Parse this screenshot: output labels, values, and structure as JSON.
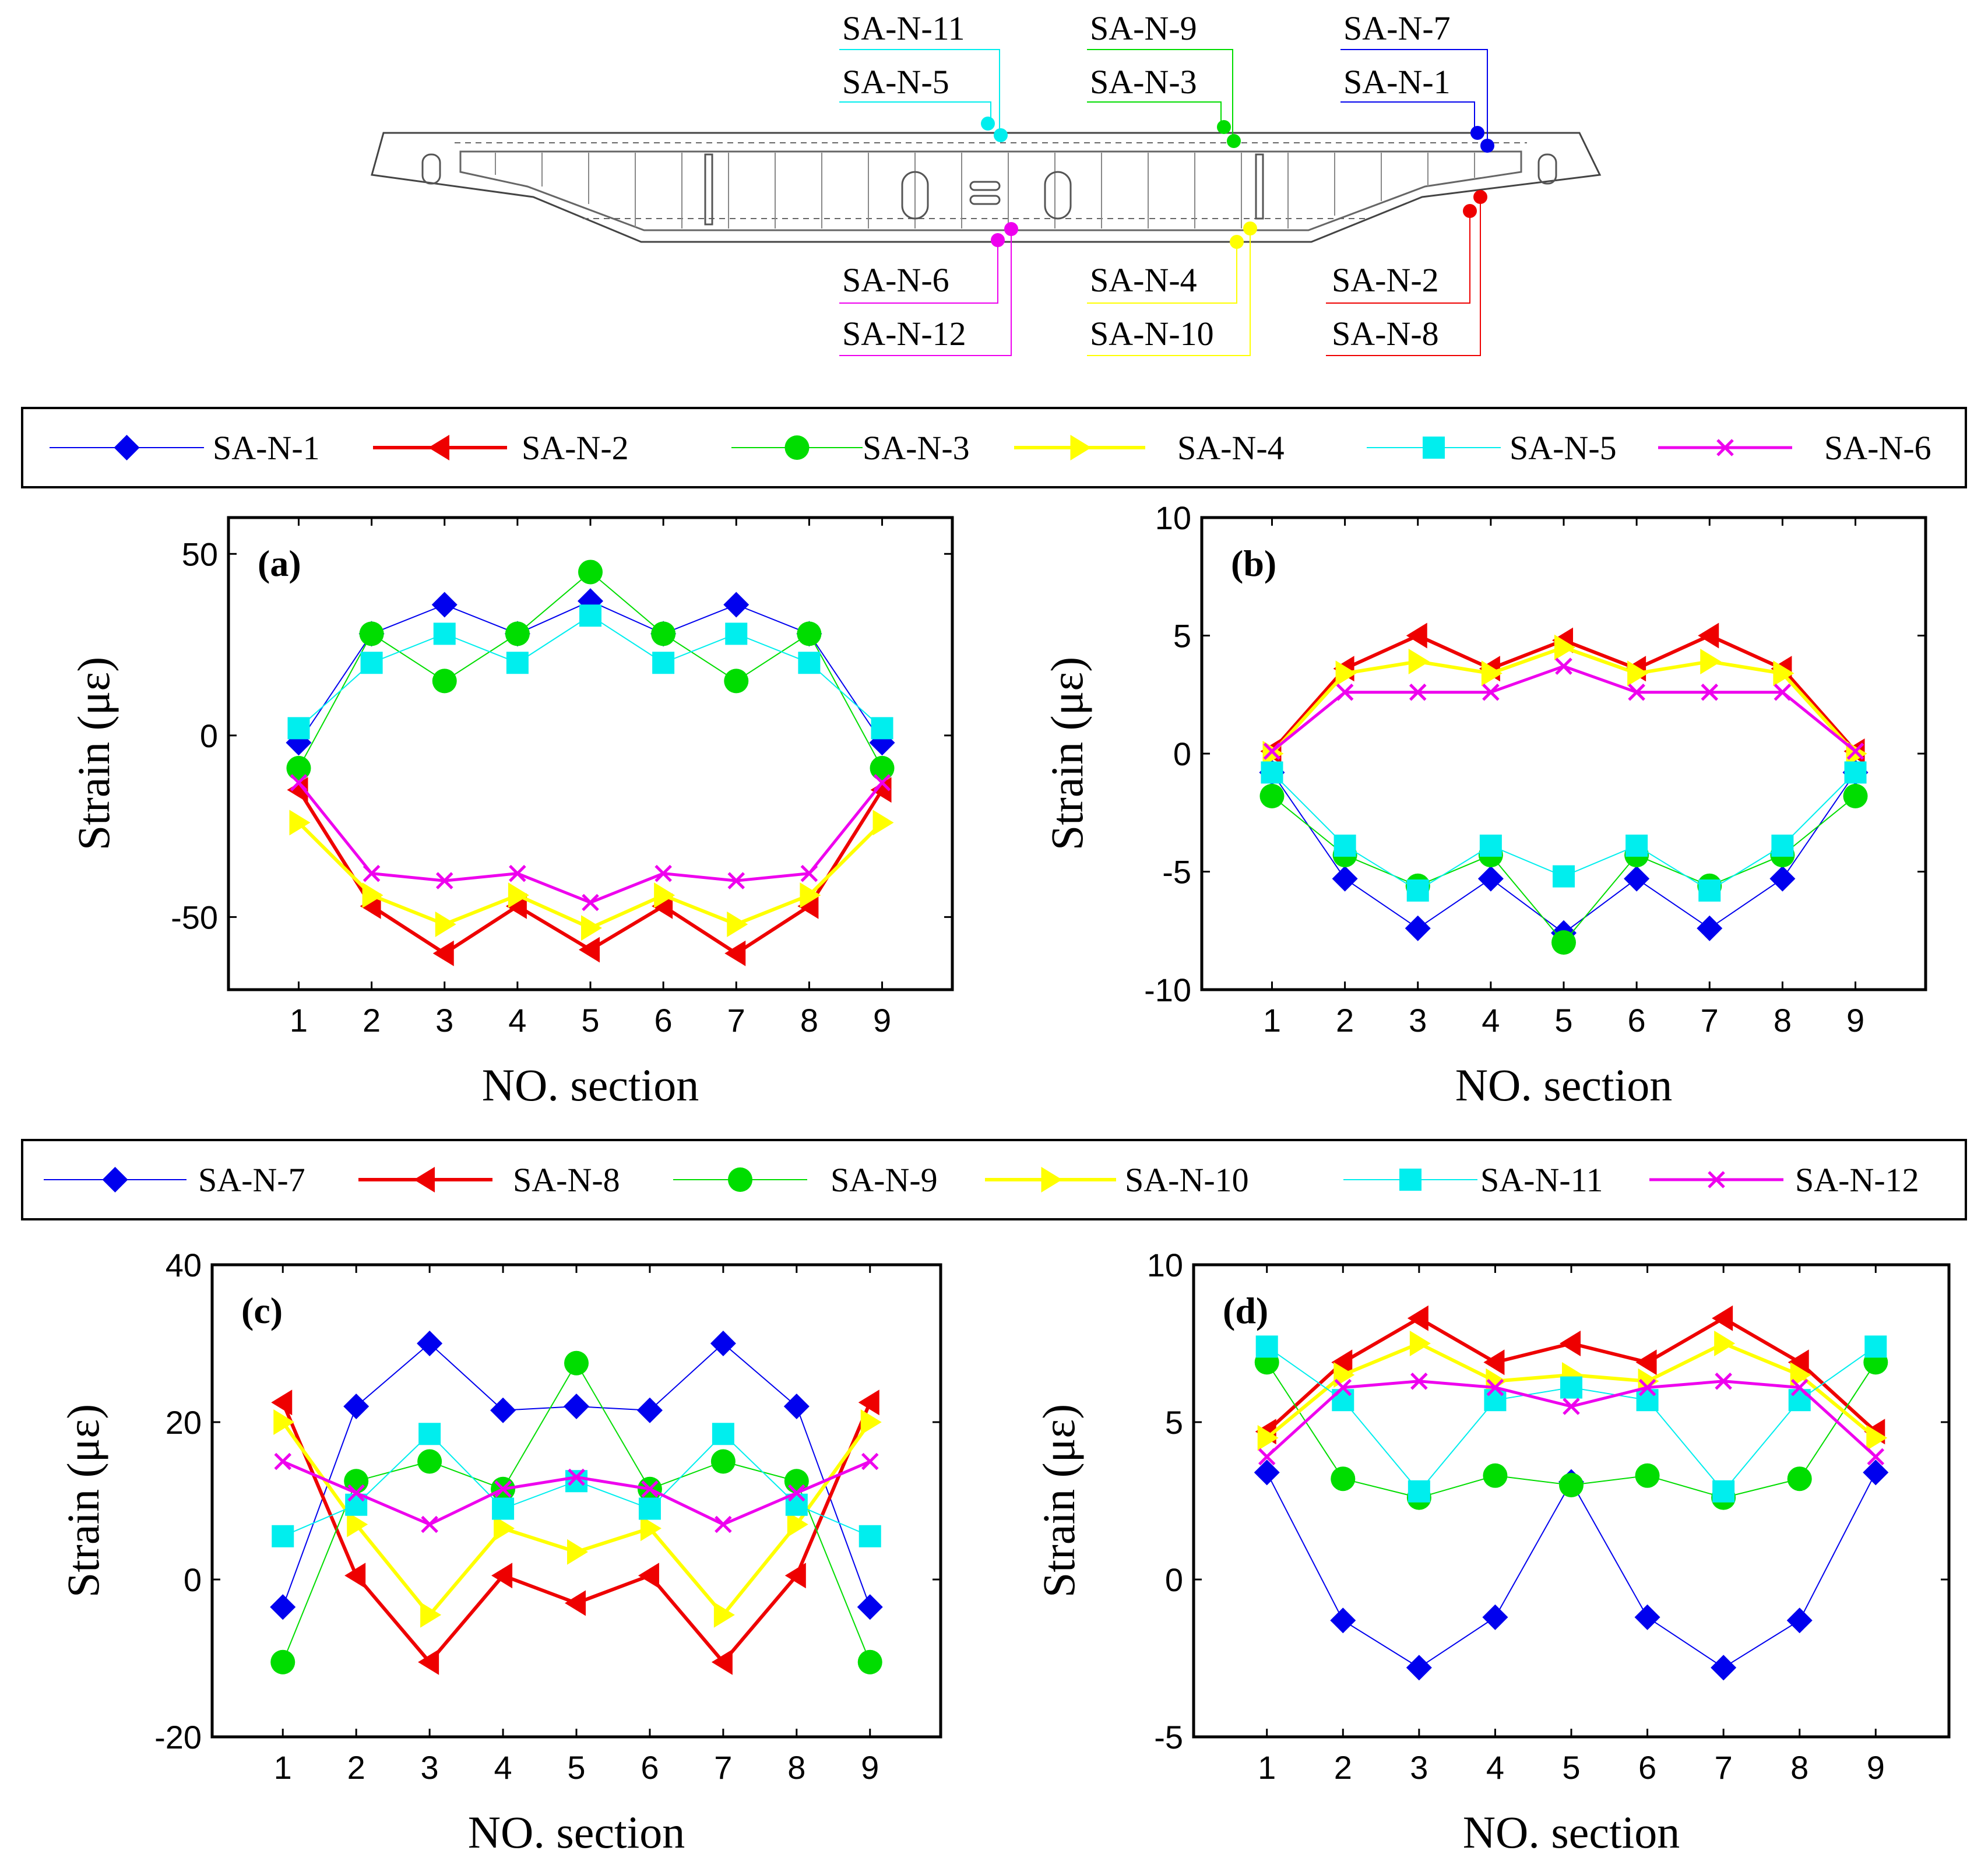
{
  "figure": {
    "diagram_labels": {
      "top": [
        "SA-N-11",
        "SA-N-5",
        "SA-N-9",
        "SA-N-3",
        "SA-N-7",
        "SA-N-1"
      ],
      "bottom": [
        "SA-N-6",
        "SA-N-12",
        "SA-N-4",
        "SA-N-10",
        "SA-N-2",
        "SA-N-8"
      ]
    },
    "colors": {
      "blue": "#0000ee",
      "red": "#ee0000",
      "green": "#00dd00",
      "yellow": "#ffff00",
      "cyan": "#00eeee",
      "magenta": "#ee00ee"
    }
  },
  "legends": [
    [
      "SA-N-1",
      "SA-N-2",
      "SA-N-3",
      "SA-N-4",
      "SA-N-5",
      "SA-N-6"
    ],
    [
      "SA-N-7",
      "SA-N-8",
      "SA-N-9",
      "SA-N-10",
      "SA-N-11",
      "SA-N-12"
    ]
  ],
  "chart_data": [
    {
      "type": "line",
      "panel": "(a)",
      "xlabel": "NO. section",
      "ylabel": "Strain (με)",
      "x": [
        1,
        2,
        3,
        4,
        5,
        6,
        7,
        8,
        9
      ],
      "ylim": [
        -70,
        60
      ],
      "yticks": [
        -50,
        0,
        50
      ],
      "series": [
        {
          "name": "SA-N-1",
          "values": [
            -2,
            28,
            36,
            28,
            37,
            28,
            36,
            28,
            -2
          ]
        },
        {
          "name": "SA-N-2",
          "values": [
            -15,
            -47,
            -60,
            -47,
            -59,
            -47,
            -60,
            -47,
            -15
          ]
        },
        {
          "name": "SA-N-3",
          "values": [
            -9,
            28,
            15,
            28,
            45,
            28,
            15,
            28,
            -9
          ]
        },
        {
          "name": "SA-N-4",
          "values": [
            -24,
            -44,
            -52,
            -44,
            -53,
            -44,
            -52,
            -44,
            -24
          ]
        },
        {
          "name": "SA-N-5",
          "values": [
            2,
            20,
            28,
            20,
            33,
            20,
            28,
            20,
            2
          ]
        },
        {
          "name": "SA-N-6",
          "values": [
            -13,
            -38,
            -40,
            -38,
            -46,
            -38,
            -40,
            -38,
            -13
          ]
        }
      ]
    },
    {
      "type": "line",
      "panel": "(b)",
      "xlabel": "NO. section",
      "ylabel": "Strain (με)",
      "x": [
        1,
        2,
        3,
        4,
        5,
        6,
        7,
        8,
        9
      ],
      "ylim": [
        -10,
        10
      ],
      "yticks": [
        -10,
        -5,
        0,
        5,
        10
      ],
      "series": [
        {
          "name": "SA-N-1",
          "values": [
            -0.8,
            -5.3,
            -7.4,
            -5.3,
            -7.6,
            -5.3,
            -7.4,
            -5.3,
            -0.8
          ]
        },
        {
          "name": "SA-N-2",
          "values": [
            0.1,
            3.6,
            5.0,
            3.6,
            4.8,
            3.6,
            5.0,
            3.6,
            0.1
          ]
        },
        {
          "name": "SA-N-3",
          "values": [
            -1.8,
            -4.3,
            -5.6,
            -4.3,
            -8.0,
            -4.3,
            -5.6,
            -4.3,
            -1.8
          ]
        },
        {
          "name": "SA-N-4",
          "values": [
            0.0,
            3.4,
            3.9,
            3.4,
            4.5,
            3.4,
            3.9,
            3.4,
            0.0
          ]
        },
        {
          "name": "SA-N-5",
          "values": [
            -0.8,
            -3.9,
            -5.8,
            -3.9,
            -5.2,
            -3.9,
            -5.8,
            -3.9,
            -0.8
          ]
        },
        {
          "name": "SA-N-6",
          "values": [
            0.1,
            2.6,
            2.6,
            2.6,
            3.7,
            2.6,
            2.6,
            2.6,
            0.1
          ]
        }
      ]
    },
    {
      "type": "line",
      "panel": "(c)",
      "xlabel": "NO. section",
      "ylabel": "Strain (με)",
      "x": [
        1,
        2,
        3,
        4,
        5,
        6,
        7,
        8,
        9
      ],
      "ylim": [
        -20,
        40
      ],
      "yticks": [
        -20,
        0,
        20,
        40
      ],
      "series": [
        {
          "name": "SA-N-7",
          "values": [
            -3.5,
            22,
            30,
            21.5,
            22,
            21.5,
            30,
            22,
            -3.5
          ]
        },
        {
          "name": "SA-N-8",
          "values": [
            22.5,
            0.5,
            -10.5,
            0.5,
            -3,
            0.5,
            -10.5,
            0.5,
            22.5
          ]
        },
        {
          "name": "SA-N-9",
          "values": [
            -10.5,
            12.5,
            15,
            11.5,
            27.5,
            11.5,
            15,
            12.5,
            -10.5
          ]
        },
        {
          "name": "SA-N-10",
          "values": [
            20,
            7,
            -4.5,
            6.5,
            3.5,
            6.5,
            -4.5,
            7,
            20
          ]
        },
        {
          "name": "SA-N-11",
          "values": [
            5.5,
            9.5,
            18.5,
            9,
            12.5,
            9,
            18.5,
            9.5,
            5.5
          ]
        },
        {
          "name": "SA-N-12",
          "values": [
            15,
            11,
            7,
            11.5,
            13,
            11.5,
            7,
            11,
            15
          ]
        }
      ]
    },
    {
      "type": "line",
      "panel": "(d)",
      "xlabel": "NO. section",
      "ylabel": "Strain (με)",
      "x": [
        1,
        2,
        3,
        4,
        5,
        6,
        7,
        8,
        9
      ],
      "ylim": [
        -5,
        10
      ],
      "yticks": [
        -5,
        0,
        5,
        10
      ],
      "series": [
        {
          "name": "SA-N-7",
          "values": [
            3.4,
            -1.3,
            -2.8,
            -1.2,
            3.1,
            -1.2,
            -2.8,
            -1.3,
            3.4
          ]
        },
        {
          "name": "SA-N-8",
          "values": [
            4.7,
            6.9,
            8.3,
            6.9,
            7.5,
            6.9,
            8.3,
            6.9,
            4.7
          ]
        },
        {
          "name": "SA-N-9",
          "values": [
            6.9,
            3.2,
            2.6,
            3.3,
            3.0,
            3.3,
            2.6,
            3.2,
            6.9
          ]
        },
        {
          "name": "SA-N-10",
          "values": [
            4.5,
            6.5,
            7.5,
            6.3,
            6.5,
            6.3,
            7.5,
            6.5,
            4.5
          ]
        },
        {
          "name": "SA-N-11",
          "values": [
            7.4,
            5.7,
            2.8,
            5.7,
            6.1,
            5.7,
            2.8,
            5.7,
            7.4
          ]
        },
        {
          "name": "SA-N-12",
          "values": [
            3.9,
            6.1,
            6.3,
            6.1,
            5.5,
            6.1,
            6.3,
            6.1,
            3.9
          ]
        }
      ]
    }
  ]
}
